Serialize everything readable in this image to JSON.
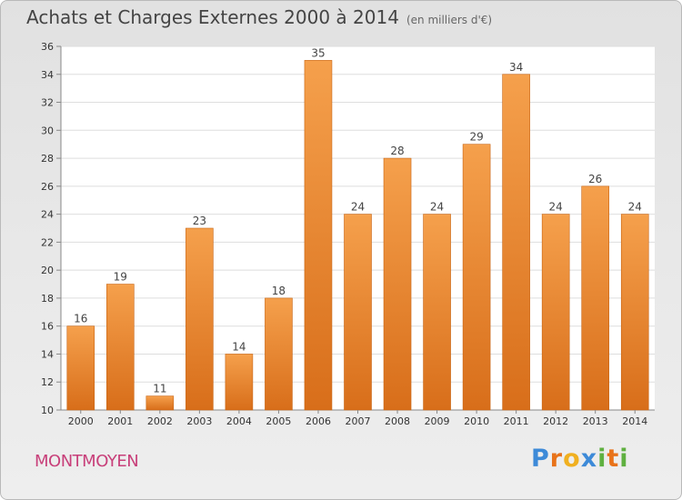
{
  "header": {
    "title": "Achats et Charges Externes 2000 à 2014",
    "unit": "(en milliers d'€)"
  },
  "footer": {
    "town": "MONTMOYEN",
    "logo": "Proxiti"
  },
  "colors": {
    "bar_light": "#f5a04c",
    "bar_dark": "#d86e1a",
    "town_text": "#c8407a"
  },
  "chart_data": {
    "type": "bar",
    "title": "Achats et Charges Externes 2000 à 2014",
    "subtitle": "(en milliers d'€)",
    "categories": [
      "2000",
      "2001",
      "2002",
      "2003",
      "2004",
      "2005",
      "2006",
      "2007",
      "2008",
      "2009",
      "2010",
      "2011",
      "2012",
      "2013",
      "2014"
    ],
    "values": [
      16,
      19,
      11,
      23,
      14,
      18,
      35,
      24,
      28,
      24,
      29,
      34,
      24,
      26,
      24
    ],
    "ylim": [
      10,
      36
    ],
    "yticks": [
      10,
      12,
      14,
      16,
      18,
      20,
      22,
      24,
      26,
      28,
      30,
      32,
      34,
      36
    ],
    "grid": true,
    "data_labels": true
  }
}
